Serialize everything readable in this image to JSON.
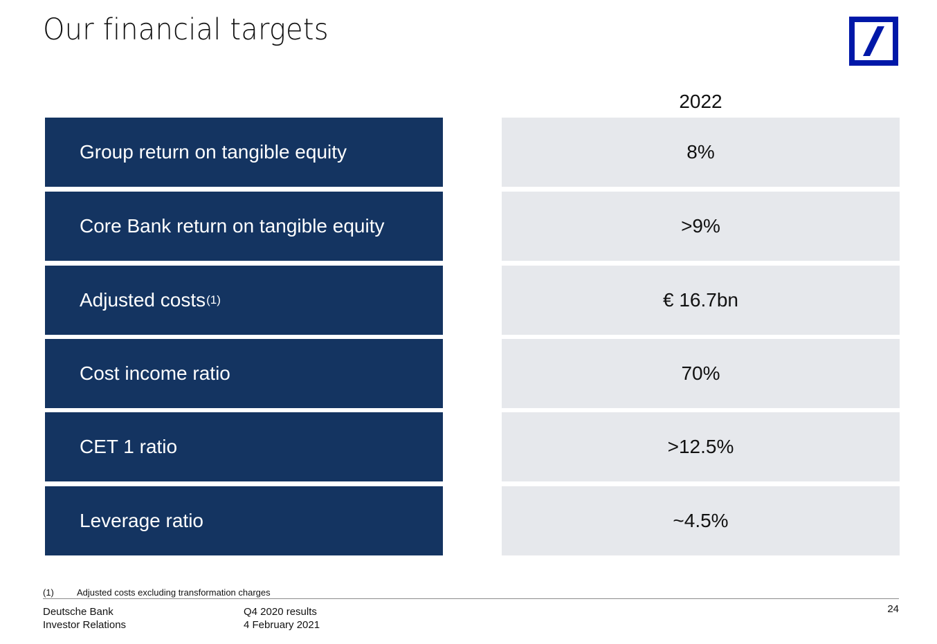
{
  "title": "Our financial targets",
  "column_header": "2022",
  "targets": [
    {
      "label": "Group return on tangible equity",
      "sup": "",
      "value": "8%"
    },
    {
      "label": "Core Bank return on tangible equity",
      "sup": "",
      "value": ">9%"
    },
    {
      "label": "Adjusted costs",
      "sup": "(1)",
      "value": "€ 16.7bn"
    },
    {
      "label": "Cost income ratio",
      "sup": "",
      "value": "70%"
    },
    {
      "label": "CET 1 ratio",
      "sup": "",
      "value": ">12.5%"
    },
    {
      "label": "Leverage ratio",
      "sup": "",
      "value": "~4.5%"
    }
  ],
  "footnote": {
    "marker": "(1)",
    "text": "Adjusted costs excluding transformation charges"
  },
  "footer": {
    "company": "Deutsche Bank",
    "department": "Investor Relations",
    "report": "Q4 2020 results",
    "date": "4 February 2021",
    "page": "24"
  },
  "colors": {
    "navy": "#143461",
    "light_grey": "#e6e8ec",
    "logo_blue": "#0018a8"
  },
  "icons": {
    "logo": "deutsche-bank-logo"
  }
}
